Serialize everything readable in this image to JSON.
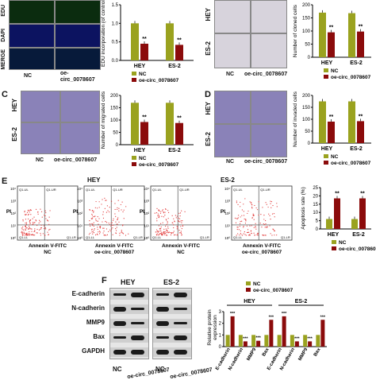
{
  "panels": {
    "A": {
      "row_labels": [
        "EDU",
        "DAPI",
        "MERGE"
      ],
      "col_labels": [
        "NC",
        "oe-circ_0078607"
      ]
    },
    "B": {
      "row_labels": [
        "HEY",
        "ES-2"
      ],
      "col_labels": [
        "NC",
        "oe-circ_0078607"
      ]
    },
    "C": {
      "letter": "C",
      "row_labels": [
        "HEY",
        "ES-2"
      ],
      "col_labels": [
        "NC",
        "oe-circ_0078607"
      ]
    },
    "D": {
      "letter": "D",
      "row_labels": [
        "HEY",
        "ES-2"
      ],
      "col_labels": [
        "NC",
        "oe-circ_0078607"
      ]
    },
    "E": {
      "letter": "E",
      "groups": [
        "HEY",
        "ES-2"
      ],
      "axis_y": "PI",
      "axis_x": "Annexin V-FITC",
      "quadrants": [
        "Q1-UL",
        "Q1-UR",
        "Q1-LL",
        "Q1-LR"
      ],
      "ticks": [
        "10⁰",
        "10¹",
        "10²",
        "10³",
        "10⁴"
      ],
      "conditions": [
        "NC",
        "oe-circ_0078607",
        "NC",
        "oe-circ_0078607"
      ]
    },
    "F": {
      "letter": "F",
      "groups": [
        "HEY",
        "ES-2"
      ],
      "proteins": [
        "E-cadherin",
        "N-cadherin",
        "MMP9",
        "Bax",
        "GAPDH"
      ],
      "conditions": [
        "NC",
        "oe-circ_0078607",
        "NC",
        "oe-circ_0078607"
      ]
    }
  },
  "legend": {
    "nc": "NC",
    "oe": "oe-circ_0078607",
    "nc_color": "#9aa21f",
    "oe_color": "#8b0b0b"
  },
  "chart_data": [
    {
      "id": "edu",
      "type": "bar",
      "categories": [
        "HEY",
        "ES-2"
      ],
      "ylabel": "EDU incorporation (of control)",
      "ylim": [
        0,
        1.5
      ],
      "yticks": [
        "0.0",
        "0.5",
        "1.0",
        "1.5"
      ],
      "series": [
        {
          "name": "NC",
          "values": [
            1.0,
            1.0
          ]
        },
        {
          "name": "oe-circ_0078607",
          "values": [
            0.45,
            0.42
          ]
        }
      ],
      "annotations": [
        "**",
        "**"
      ]
    },
    {
      "id": "clone",
      "type": "bar",
      "categories": [
        "HEY",
        "ES-2"
      ],
      "ylabel": "Number of cloned cells",
      "ylim": [
        0,
        200
      ],
      "yticks": [
        "0",
        "50",
        "100",
        "150",
        "200"
      ],
      "series": [
        {
          "name": "NC",
          "values": [
            170,
            168
          ]
        },
        {
          "name": "oe-circ_0078607",
          "values": [
            95,
            98
          ]
        }
      ],
      "annotations": [
        "**",
        "**"
      ]
    },
    {
      "id": "migrate",
      "type": "bar",
      "categories": [
        "HEY",
        "ES-2"
      ],
      "ylabel": "Number of migrated cells",
      "ylim": [
        0,
        200
      ],
      "yticks": [
        "0",
        "50",
        "100",
        "150",
        "200"
      ],
      "series": [
        {
          "name": "NC",
          "values": [
            170,
            170
          ]
        },
        {
          "name": "oe-circ_0078607",
          "values": [
            92,
            88
          ]
        }
      ],
      "annotations": [
        "**",
        "**"
      ]
    },
    {
      "id": "invade",
      "type": "bar",
      "categories": [
        "HEY",
        "ES-2"
      ],
      "ylabel": "Number of invaded cells",
      "ylim": [
        0,
        200
      ],
      "yticks": [
        "0",
        "50",
        "100",
        "150",
        "200"
      ],
      "series": [
        {
          "name": "NC",
          "values": [
            175,
            175
          ]
        },
        {
          "name": "oe-circ_0078607",
          "values": [
            90,
            92
          ]
        }
      ],
      "annotations": [
        "**",
        "**"
      ]
    },
    {
      "id": "apoptosis",
      "type": "bar",
      "categories": [
        "HEY",
        "ES-2"
      ],
      "ylabel": "Apoptosis rate (%)",
      "ylim": [
        0,
        25
      ],
      "yticks": [
        "0",
        "5",
        "10",
        "15",
        "20",
        "25"
      ],
      "series": [
        {
          "name": "NC",
          "values": [
            6,
            6
          ]
        },
        {
          "name": "oe-circ_0078607",
          "values": [
            18.5,
            18.5
          ]
        }
      ],
      "annotations": [
        "**",
        "**"
      ]
    },
    {
      "id": "protein",
      "type": "bar",
      "categories": [
        "E-cadherin",
        "N-cadherin",
        "MMP9",
        "Bax",
        "E-cadherin",
        "N-cadherin",
        "MMP9",
        "Bax"
      ],
      "groups": [
        "HEY",
        "ES-2"
      ],
      "ylabel": "Relative protein expression",
      "ylim": [
        0,
        3
      ],
      "yticks": [
        "0",
        "1",
        "2",
        "3"
      ],
      "series": [
        {
          "name": "NC",
          "values": [
            1,
            1,
            1,
            1,
            1,
            1,
            1,
            1
          ]
        },
        {
          "name": "oe-circ_0078607",
          "values": [
            2.6,
            0.45,
            0.5,
            2.3,
            2.6,
            0.45,
            0.45,
            2.3
          ]
        }
      ],
      "annotations": [
        "***",
        "***",
        "***",
        "***",
        "***",
        "***",
        "***",
        "***"
      ]
    }
  ]
}
